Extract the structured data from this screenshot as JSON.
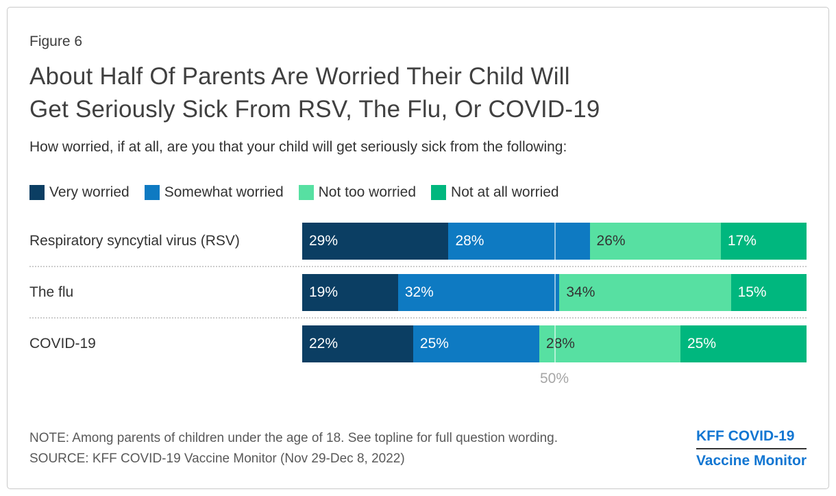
{
  "figure_label": "Figure 6",
  "title_line1": "About Half Of Parents Are Worried Their Child Will",
  "title_line2": "Get Seriously Sick From RSV, The Flu, Or COVID-19",
  "subtitle": "How worried, if at all, are you that your child will get seriously sick from the following:",
  "note": "NOTE: Among parents of children under the age of 18. See topline for full question wording.",
  "source": "SOURCE: KFF COVID-19 Vaccine Monitor (Nov 29-Dec 8, 2022)",
  "logo": {
    "line1": "KFF COVID-19",
    "line2": "Vaccine Monitor",
    "color": "#1276d2"
  },
  "chart_data": {
    "type": "bar",
    "orientation": "horizontal",
    "stacked": true,
    "categories": [
      "Respiratory syncytial virus (RSV)",
      "The flu",
      "COVID-19"
    ],
    "series": [
      {
        "name": "Very worried",
        "color": "#0b3e63",
        "label_color": "#ffffff",
        "values": [
          29,
          19,
          22
        ]
      },
      {
        "name": "Somewhat worried",
        "color": "#0e7ac2",
        "label_color": "#ffffff",
        "values": [
          28,
          32,
          25
        ]
      },
      {
        "name": "Not too worried",
        "color": "#57e0a2",
        "label_color": "#333333",
        "values": [
          26,
          34,
          28
        ]
      },
      {
        "name": "Not at all worried",
        "color": "#00b77e",
        "label_color": "#ffffff",
        "values": [
          17,
          15,
          25
        ]
      }
    ],
    "value_suffix": "%",
    "xlim": [
      0,
      100
    ],
    "reference_line": 50,
    "reference_line_label": "50%",
    "legend_position": "top",
    "grid": false
  }
}
